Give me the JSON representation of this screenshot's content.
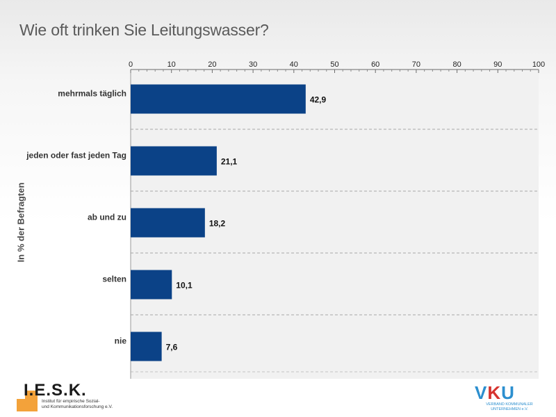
{
  "page": {
    "title": "Wie oft trinken Sie Leitungswasser?"
  },
  "chart_data": {
    "type": "bar",
    "orientation": "horizontal",
    "title": "Wie oft trinken Sie Leitungswasser?",
    "ylabel": "In  % der Befragten",
    "xlim": [
      0,
      100
    ],
    "xticks": [
      0,
      10,
      20,
      30,
      40,
      50,
      60,
      70,
      80,
      90,
      100
    ],
    "tick_labels": [
      "0",
      "10",
      "20",
      "30",
      "40",
      "50",
      "60",
      "70",
      "80",
      "90",
      "100"
    ],
    "categories": [
      "mehrmals täglich",
      "jeden oder fast jeden Tag",
      "ab und zu",
      "selten",
      "nie"
    ],
    "values": [
      42.9,
      21.1,
      18.2,
      10.1,
      7.6
    ],
    "value_labels": [
      "42,9",
      "21,1",
      "18,2",
      "10,1",
      "7,6"
    ],
    "bar_color": "#0b4287",
    "axis_position": "top",
    "grid": false
  },
  "logos": {
    "iesk": {
      "name": "I.E.S.K.",
      "subtitle": "Institut für empirische Sozial-\nund Kommunikationsforschung e.V.",
      "accent_color": "#f3a23a"
    },
    "vku": {
      "letters": [
        "V",
        "K",
        "U"
      ],
      "subtitle": "VERBAND KOMMUNALER\nUNTERNEHMEN e.V.",
      "blue": "#2c8fcf",
      "red": "#d6332f"
    }
  }
}
